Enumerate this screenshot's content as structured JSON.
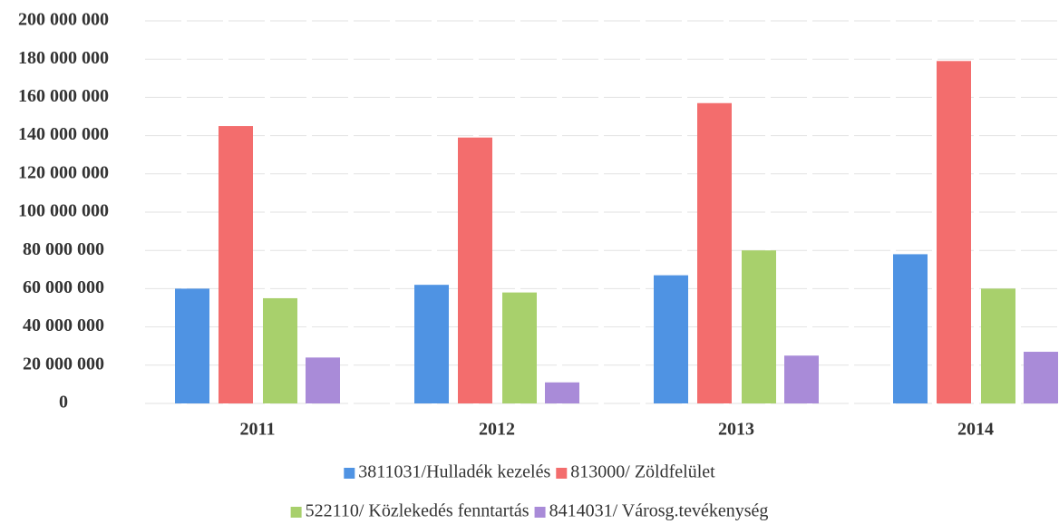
{
  "chart_data": {
    "type": "bar",
    "categories": [
      "2011",
      "2012",
      "2013",
      "2014"
    ],
    "series": [
      {
        "name": "3811031/Hulladék kezelés",
        "color": "#4f93e3",
        "values": [
          60000000,
          62000000,
          67000000,
          78000000
        ]
      },
      {
        "name": "813000/ Zöldfelület",
        "color": "#f36d6d",
        "values": [
          145000000,
          139000000,
          157000000,
          179000000
        ]
      },
      {
        "name": "522110/ Közlekedés fenntartás",
        "color": "#a8d06c",
        "values": [
          55000000,
          58000000,
          80000000,
          60000000
        ]
      },
      {
        "name": "8414031/ Városg.tevékenység",
        "color": "#a98bd8",
        "values": [
          24000000,
          11000000,
          25000000,
          27000000
        ]
      }
    ],
    "ylim": [
      0,
      200000000
    ],
    "yticks": [
      0,
      {
        "value": 20000000,
        "label": "20 000 000"
      },
      {
        "value": 40000000,
        "label": "40 000 000"
      },
      {
        "value": 60000000,
        "label": "60 000 000"
      },
      {
        "value": 80000000,
        "label": "80 000 000"
      },
      {
        "value": 100000000,
        "label": "100 000 000"
      },
      {
        "value": 120000000,
        "label": "120 000 000"
      },
      {
        "value": 140000000,
        "label": "140 000 000"
      },
      {
        "value": 160000000,
        "label": "160 000 000"
      },
      {
        "value": 180000000,
        "label": "180 000 000"
      },
      {
        "value": 200000000,
        "label": "200 000 000"
      }
    ],
    "grid": true,
    "legend": "bottom"
  }
}
